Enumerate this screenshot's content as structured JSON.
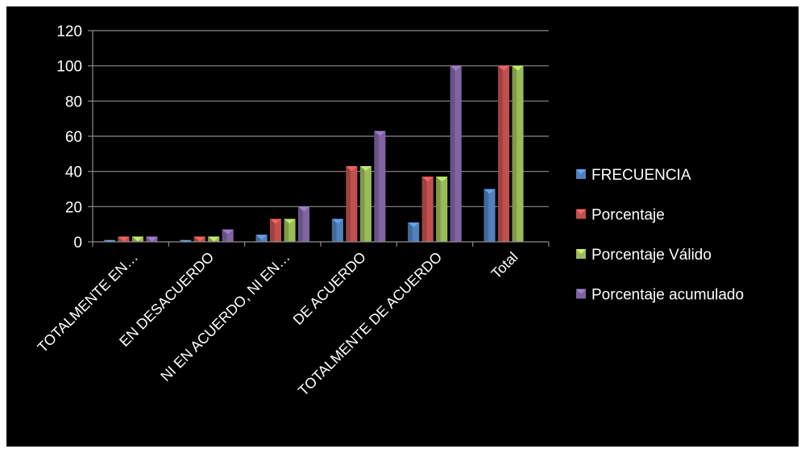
{
  "chart_data": {
    "type": "bar",
    "categories": [
      "TOTALMENTE EN…",
      "EN DESACUERDO",
      "NI EN ACUERDO, NI EN…",
      "DE ACUERDO",
      "TOTALMENTE DE ACUERDO",
      "Total"
    ],
    "series": [
      {
        "name": "FRECUENCIA",
        "color": "#4f81bd",
        "values": [
          1,
          1,
          4,
          13,
          11,
          30
        ]
      },
      {
        "name": "Porcentaje",
        "color": "#c0504d",
        "values": [
          3,
          3,
          13,
          43,
          37,
          100
        ]
      },
      {
        "name": "Porcentaje Válido",
        "color": "#9bbb59",
        "values": [
          3,
          3,
          13,
          43,
          37,
          100
        ]
      },
      {
        "name": "Porcentaje acumulado",
        "color": "#8064a2",
        "values": [
          3,
          7,
          20,
          63,
          100,
          null
        ]
      }
    ],
    "yticks": [
      "0",
      "20",
      "40",
      "60",
      "80",
      "100",
      "120"
    ],
    "ylim": [
      0,
      120
    ],
    "grid": true,
    "legend_position": "right",
    "background": "#000000"
  }
}
